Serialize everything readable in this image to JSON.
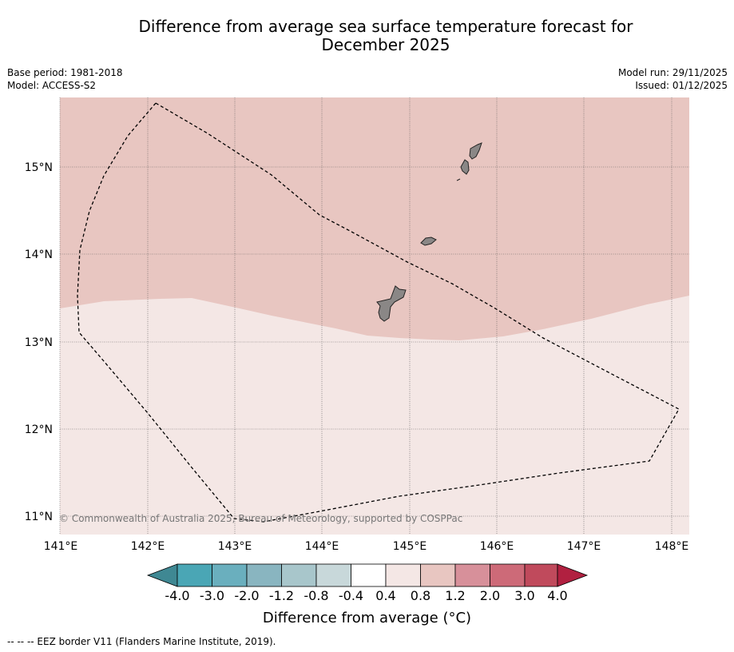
{
  "title": {
    "line1": "Difference from average sea surface temperature forecast for",
    "line2": "December 2025"
  },
  "meta": {
    "base_period": "Base period: 1981-2018",
    "model": "Model: ACCESS-S2",
    "model_run": "Model run: 29/11/2025",
    "issued": "Issued: 01/12/2025"
  },
  "map": {
    "lat_labels": [
      "15°N",
      "14°N",
      "13°N",
      "12°N",
      "11°N"
    ],
    "lon_labels": [
      "141°E",
      "142°E",
      "143°E",
      "144°E",
      "145°E",
      "146°E",
      "147°E",
      "148°E"
    ],
    "regions": [
      {
        "name": "warm-anomaly-0.8-1.2",
        "color": "#e8c6c1"
      },
      {
        "name": "warm-anomaly-0.4-0.8",
        "color": "#f4e7e5"
      }
    ],
    "land_color": "#8a8786",
    "copyright": "© Commonwealth of Australia 2025, Bureau of Meteorology, supported by COSPPac"
  },
  "colorbar": {
    "ticks": [
      "-4.0",
      "-3.0",
      "-2.0",
      "-1.2",
      "-0.8",
      "-0.4",
      "0.4",
      "0.8",
      "1.2",
      "2.0",
      "3.0",
      "4.0"
    ],
    "colors": [
      "#3f8893",
      "#4aa6b5",
      "#6aafbe",
      "#89b5c0",
      "#a8c6cb",
      "#c8d8da",
      "#ffffff",
      "#f4e7e5",
      "#e8c6c1",
      "#d7909a",
      "#cd6a78",
      "#c04a5c",
      "#b12040"
    ],
    "title": "Difference from average (°C)"
  },
  "footer": {
    "legend": "--  --  -- EEZ border V11 (Flanders Marine Institute, 2019)."
  }
}
